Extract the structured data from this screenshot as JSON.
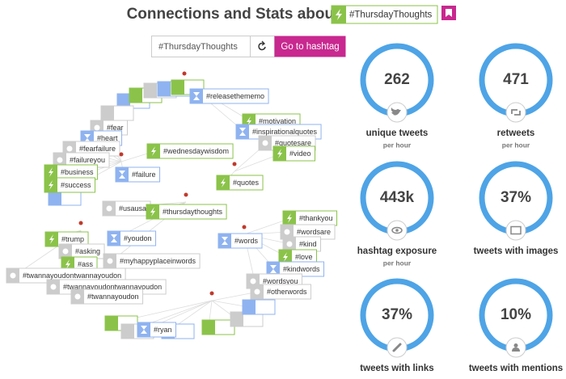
{
  "header": {
    "title": "Connections and Stats about",
    "hashtag": "#ThursdayThoughts"
  },
  "search": {
    "value": "#ThursdayThoughts",
    "button": "Go to hashtag"
  },
  "graph": {
    "nodes": [
      {
        "label": "#releasethememo"
      },
      {
        "label": "#motivation"
      },
      {
        "label": "#inspirationalquotes"
      },
      {
        "label": "#quotesare"
      },
      {
        "label": "#video"
      },
      {
        "label": "#fear"
      },
      {
        "label": "#heart"
      },
      {
        "label": "#fearfailure"
      },
      {
        "label": "#failureyou"
      },
      {
        "label": "#business"
      },
      {
        "label": "#success"
      },
      {
        "label": "#wednesdaywisdom"
      },
      {
        "label": "#failure"
      },
      {
        "label": "#quotes"
      },
      {
        "label": "#usausa"
      },
      {
        "label": "#thursdaythoughts"
      },
      {
        "label": "#trump"
      },
      {
        "label": "#asking"
      },
      {
        "label": "#ass"
      },
      {
        "label": "#youdon"
      },
      {
        "label": "#myhappyplaceinwords"
      },
      {
        "label": "#twannayoudontwannayoudon"
      },
      {
        "label": "#twannayoudontwannayoudon"
      },
      {
        "label": "#twannayoudon"
      },
      {
        "label": "#words"
      },
      {
        "label": "#thankyou"
      },
      {
        "label": "#wordsare"
      },
      {
        "label": "#kind"
      },
      {
        "label": "#love"
      },
      {
        "label": "#kindwords"
      },
      {
        "label": "#wordsyou"
      },
      {
        "label": "#otherwords"
      },
      {
        "label": "#ryan"
      }
    ]
  },
  "stats": [
    {
      "value": "262",
      "label": "unique tweets",
      "sublabel": "per hour"
    },
    {
      "value": "471",
      "label": "retweets",
      "sublabel": "per hour"
    },
    {
      "value": "443k",
      "label": "hashtag exposure",
      "sublabel": "per hour"
    },
    {
      "value": "37%",
      "label": "tweets with images"
    },
    {
      "value": "37%",
      "label": "tweets with links"
    },
    {
      "value": "10%",
      "label": "tweets with mentions"
    }
  ]
}
